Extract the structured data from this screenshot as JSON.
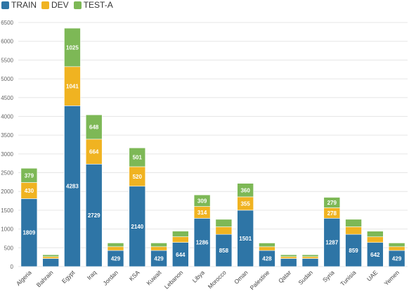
{
  "chart_data": {
    "type": "bar",
    "stacked": true,
    "title": "",
    "xlabel": "",
    "ylabel": "",
    "ylim": [
      0,
      6500
    ],
    "yticks": [
      0,
      500,
      1000,
      1500,
      2000,
      2500,
      3000,
      3500,
      4000,
      4500,
      5000,
      5500,
      6000,
      6500
    ],
    "grid": true,
    "legend_position": "top-left",
    "categories": [
      "Algeria",
      "Bahrain",
      "Egypt",
      "Iraq",
      "Jordan",
      "KSA",
      "Kuwait",
      "Lebanon",
      "Libya",
      "Morocco",
      "Oman",
      "Palestine",
      "Qatar",
      "Sudan",
      "Syria",
      "Tunisia",
      "UAE",
      "Yemen"
    ],
    "series": [
      {
        "name": "TRAIN",
        "color": "#2E75A6",
        "values": [
          1809,
          215,
          4283,
          2729,
          429,
          2140,
          429,
          644,
          1286,
          858,
          1501,
          428,
          215,
          215,
          1287,
          859,
          642,
          429
        ],
        "labels": [
          "1809",
          "",
          "4283",
          "2729",
          "429",
          "2140",
          "429",
          "644",
          "1286",
          "858",
          "1501",
          "428",
          "",
          "",
          "1287",
          "859",
          "642",
          "429"
        ]
      },
      {
        "name": "DEV",
        "color": "#F0B321",
        "values": [
          430,
          50,
          1041,
          664,
          100,
          520,
          100,
          150,
          314,
          200,
          355,
          100,
          50,
          50,
          278,
          200,
          150,
          100
        ],
        "labels": [
          "430",
          "",
          "1041",
          "664",
          "",
          "520",
          "",
          "",
          "314",
          "",
          "355",
          "",
          "",
          "",
          "278",
          "",
          "",
          ""
        ]
      },
      {
        "name": "TEST-A",
        "color": "#7DB856",
        "values": [
          379,
          50,
          1025,
          648,
          100,
          501,
          100,
          150,
          309,
          200,
          360,
          100,
          50,
          50,
          279,
          200,
          150,
          100
        ],
        "labels": [
          "379",
          "",
          "1025",
          "648",
          "",
          "501",
          "",
          "",
          "309",
          "",
          "360",
          "",
          "",
          "",
          "279",
          "",
          "",
          ""
        ]
      }
    ]
  }
}
